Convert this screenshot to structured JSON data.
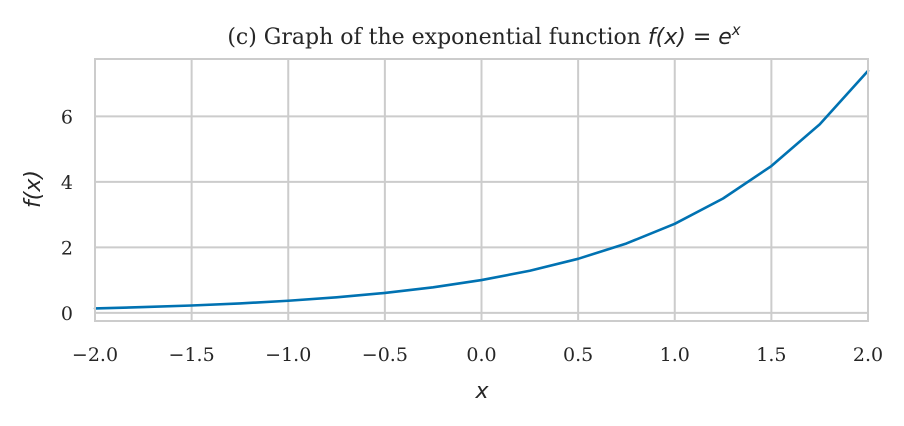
{
  "chart_data": {
    "type": "line",
    "title": {
      "prefix": "(c) Graph of the exponential function ",
      "math": "f(x) = e",
      "superscript": "x"
    },
    "xlabel": "x",
    "ylabel": "f(x)",
    "xlim": [
      -2.0,
      2.0
    ],
    "ylim": [
      -0.25,
      7.75
    ],
    "x_ticks": [
      -2.0,
      -1.5,
      -1.0,
      -0.5,
      0.0,
      0.5,
      1.0,
      1.5,
      2.0
    ],
    "x_tick_labels": [
      "−2.0",
      "−1.5",
      "−1.0",
      "−0.5",
      "0.0",
      "0.5",
      "1.0",
      "1.5",
      "2.0"
    ],
    "y_ticks": [
      0,
      2,
      4,
      6
    ],
    "y_tick_labels": [
      "0",
      "2",
      "4",
      "6"
    ],
    "grid": true,
    "series": [
      {
        "color": "#0072b2",
        "x": [
          -2.0,
          -1.75,
          -1.5,
          -1.25,
          -1.0,
          -0.75,
          -0.5,
          -0.25,
          0.0,
          0.25,
          0.5,
          0.75,
          1.0,
          1.25,
          1.5,
          1.75,
          2.0
        ],
        "y": [
          0.135,
          0.174,
          0.223,
          0.287,
          0.368,
          0.472,
          0.607,
          0.779,
          1.0,
          1.284,
          1.649,
          2.117,
          2.718,
          3.49,
          4.482,
          5.755,
          7.389
        ]
      }
    ]
  },
  "colors": {
    "grid": "#cccccc",
    "spine": "#cccccc",
    "line": "#0072b2"
  }
}
